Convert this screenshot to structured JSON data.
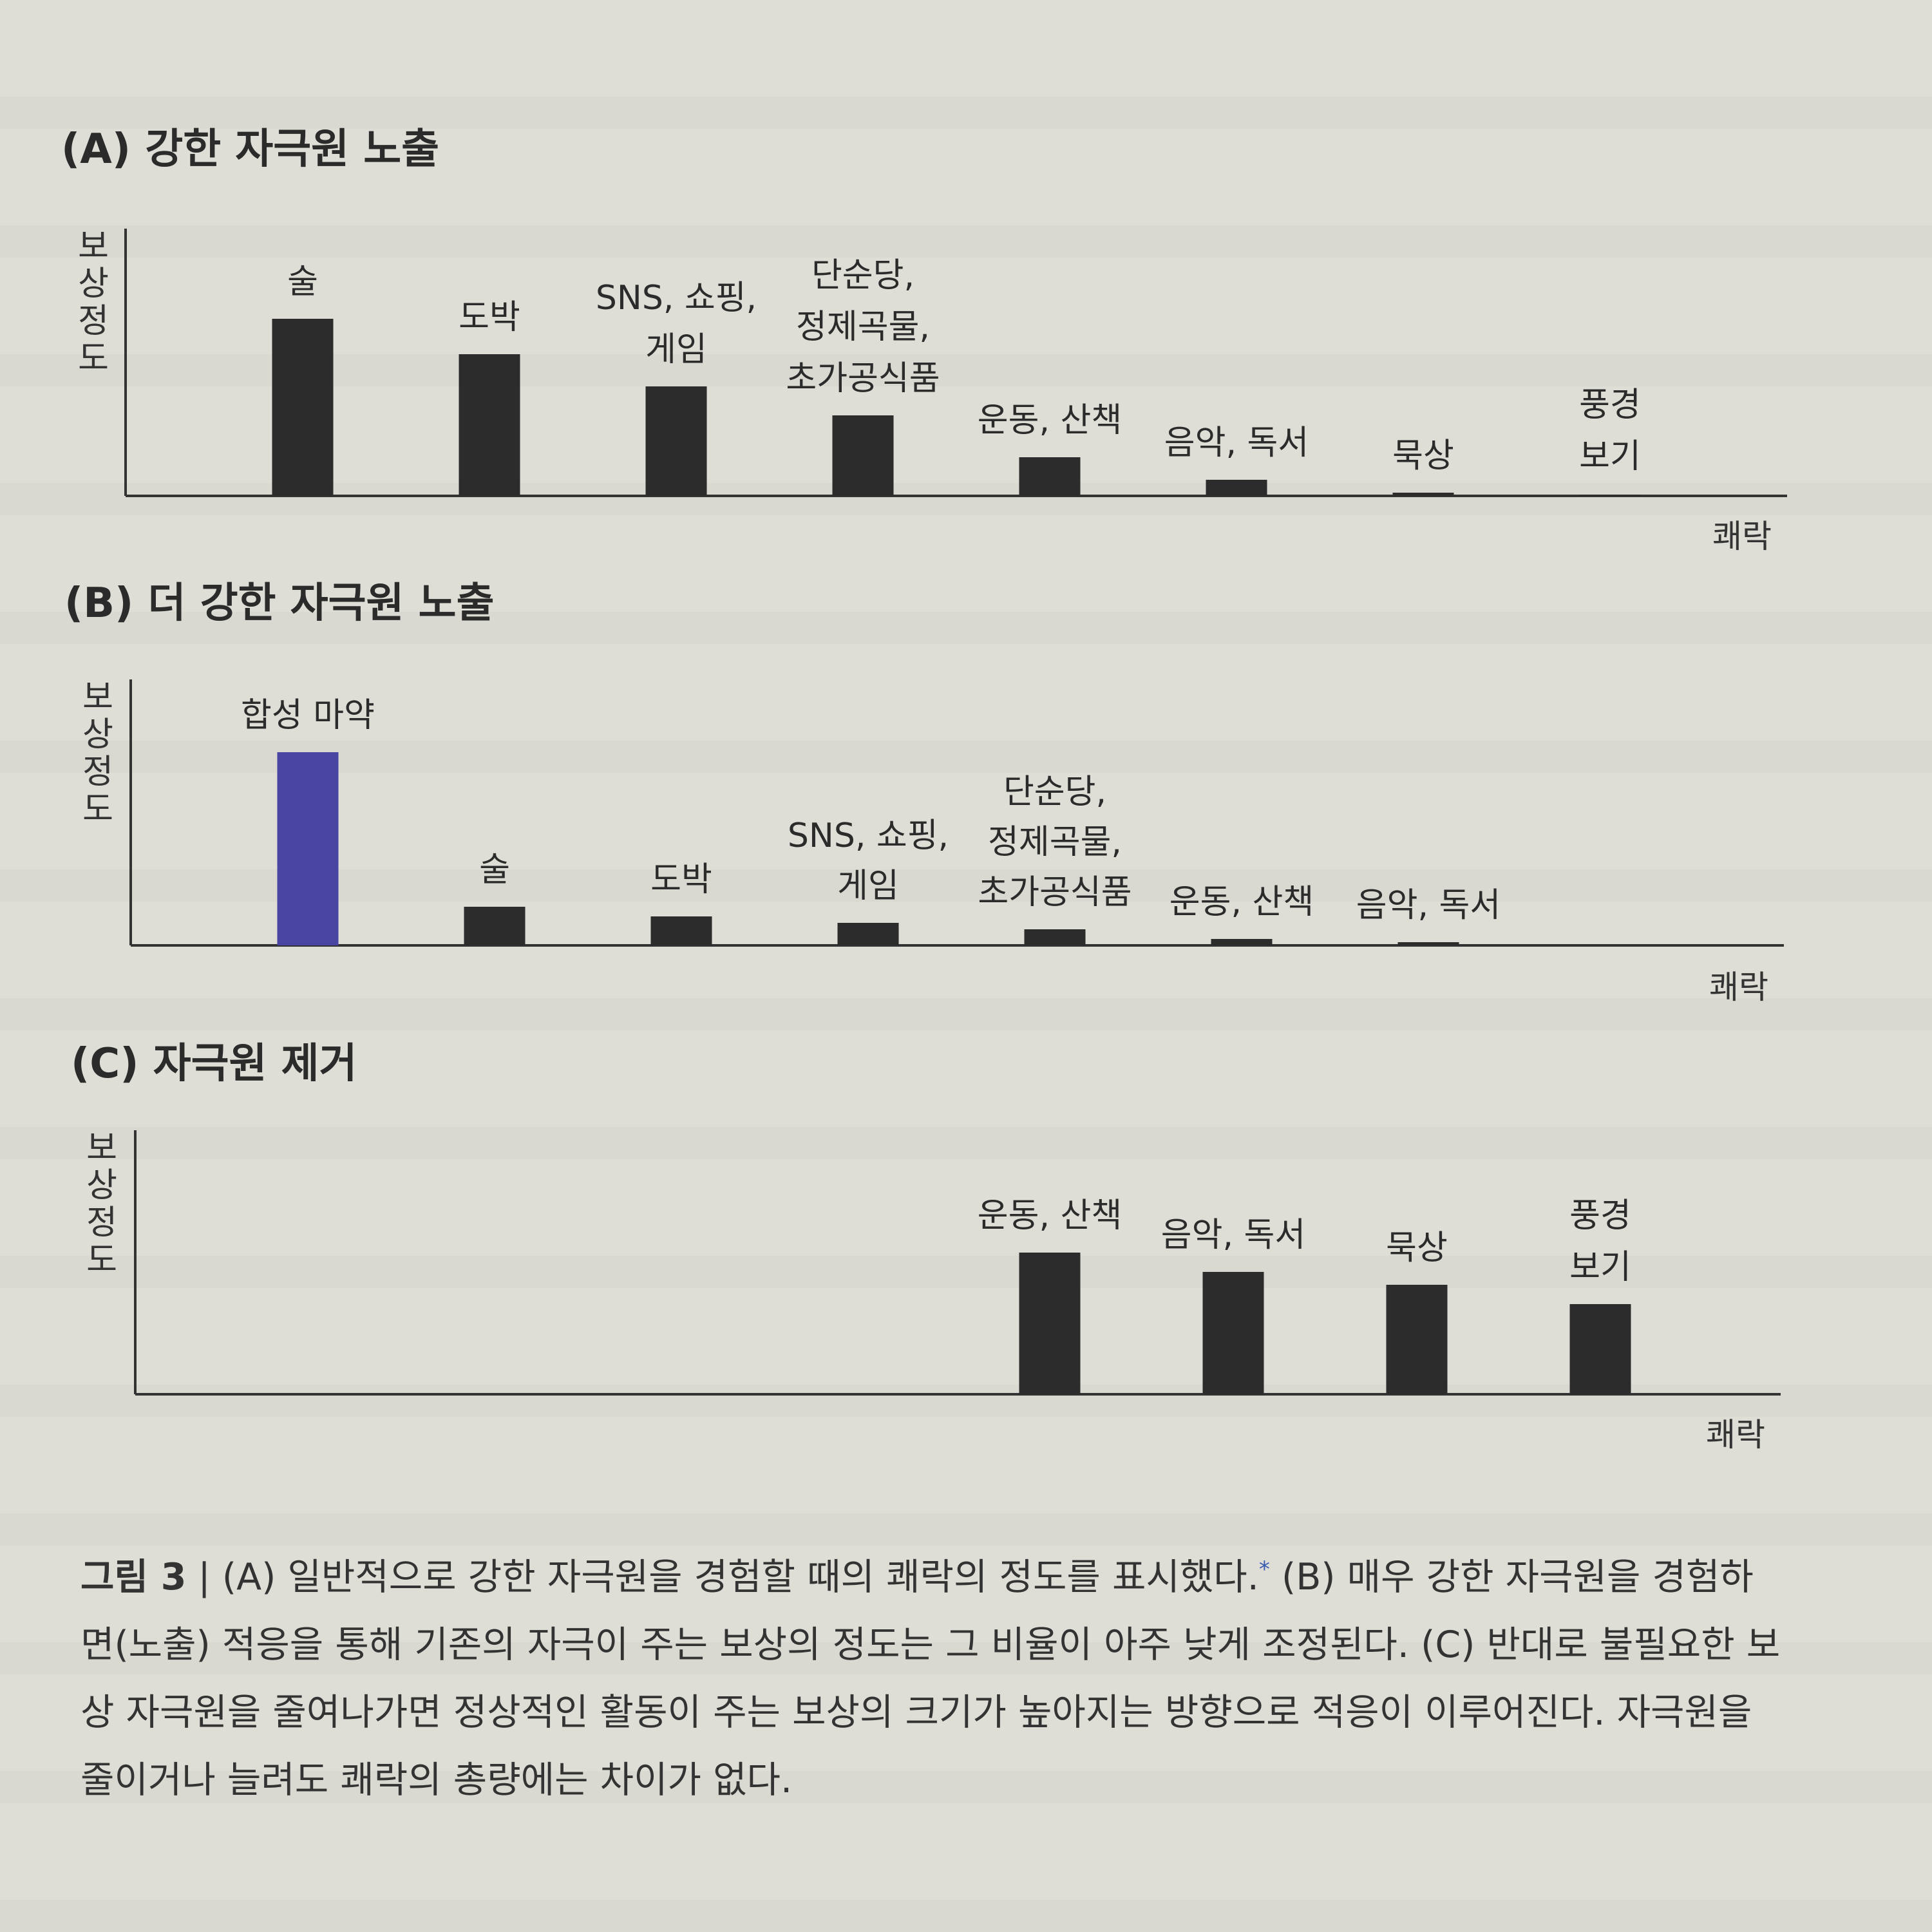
{
  "panels": [
    {
      "title": "(A) 강한 자극원 노출"
    },
    {
      "title": "(B) 더 강한 자극원 노출"
    },
    {
      "title": "(C) 자극원 제거"
    }
  ],
  "chart_data": [
    {
      "type": "bar",
      "title": "(A) 강한 자극원 노출",
      "ylabel": "보상 정도",
      "xlabel": "쾌락",
      "categories": [
        "술",
        "도박",
        "SNS, 쇼핑, 게임",
        "단순당, 정제곡물, 초가공식품",
        "운동, 산책",
        "음악, 독서",
        "묵상",
        "풍경 보기"
      ],
      "label_lines": [
        [
          "술"
        ],
        [
          "도박"
        ],
        [
          "SNS, 쇼핑,",
          "게임"
        ],
        [
          "단순당,",
          "정제곡물,",
          "초가공식품"
        ],
        [
          "운동, 산책"
        ],
        [
          "음악, 독서"
        ],
        [
          "묵상"
        ],
        [
          "풍경",
          "보기"
        ]
      ],
      "values": [
        55,
        44,
        34,
        25,
        12,
        5,
        1,
        0
      ],
      "ylim": [
        0,
        80
      ],
      "colors": [
        "#2c2c2c",
        "#2c2c2c",
        "#2c2c2c",
        "#2c2c2c",
        "#2c2c2c",
        "#2c2c2c",
        "#2c2c2c",
        "#2c2c2c"
      ],
      "grid": false
    },
    {
      "type": "bar",
      "title": "(B) 더 강한 자극원 노출",
      "ylabel": "보상 정도",
      "xlabel": "쾌락",
      "categories": [
        "합성 마약",
        "술",
        "도박",
        "SNS, 쇼핑, 게임",
        "단순당, 정제곡물, 초가공식품",
        "운동, 산책",
        "음악, 독서"
      ],
      "label_lines": [
        [
          "합성 마약"
        ],
        [
          "술"
        ],
        [
          "도박"
        ],
        [
          "SNS, 쇼핑,",
          "게임"
        ],
        [
          "단순당,",
          "정제곡물,",
          "초가공식품"
        ],
        [
          "운동, 산책"
        ],
        [
          "음악, 독서"
        ]
      ],
      "values": [
        60,
        12,
        9,
        7,
        5,
        2,
        1
      ],
      "ylim": [
        0,
        80
      ],
      "colors": [
        "#4a45a2",
        "#2c2c2c",
        "#2c2c2c",
        "#2c2c2c",
        "#2c2c2c",
        "#2c2c2c",
        "#2c2c2c"
      ],
      "grid": false
    },
    {
      "type": "bar",
      "title": "(C) 자극원 제거",
      "ylabel": "보상 정도",
      "xlabel": "쾌락",
      "categories": [
        "운동, 산책",
        "음악, 독서",
        "묵상",
        "풍경 보기"
      ],
      "label_lines": [
        [
          "운동, 산책"
        ],
        [
          "음악, 독서"
        ],
        [
          "묵상"
        ],
        [
          "풍경",
          "보기"
        ]
      ],
      "values": [
        44,
        38,
        34,
        28
      ],
      "ylim": [
        0,
        80
      ],
      "colors": [
        "#2c2c2c",
        "#2c2c2c",
        "#2c2c2c",
        "#2c2c2c"
      ],
      "grid": false
    }
  ],
  "caption": {
    "figure_label": "그림 3",
    "separator": "|",
    "text_a": "(A) 일반적으로 강한 자극원을 경험할 때의 쾌락의 정도를 표시했다.",
    "footnote_mark": "*",
    "text_rest": "(B) 매우 강한 자극원을 경험하면(노출) 적응을 통해 기존의 자극이 주는 보상의 정도는 그 비율이 아주 낮게 조정된다. (C) 반대로 불필요한 보상 자극원을 줄여나가면 정상적인 활동이 주는 보상의 크기가 높아지는 방향으로 적응이 이루어진다. 자극원을 줄이거나 늘려도 쾌락의 총량에는 차이가 없다."
  }
}
